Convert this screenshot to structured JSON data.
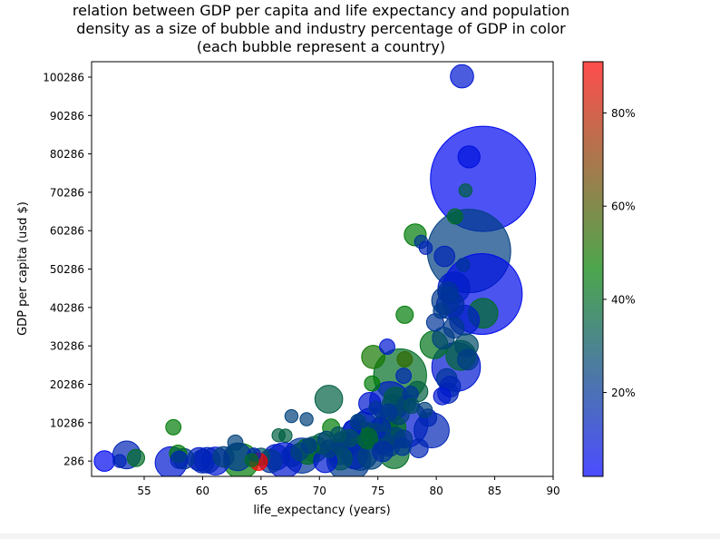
{
  "chart_data": {
    "type": "scatter",
    "title_lines": [
      "relation between GDP per capita and life expectancy and population",
      "density as a size of bubble and industry percentage of GDP in color",
      "(each bubble represent a country)"
    ],
    "xlabel": "life_expectancy (years)",
    "ylabel": "GDP per capita (usd $)",
    "xlim": [
      50.5,
      90
    ],
    "ylim": [
      -3700,
      104300
    ],
    "xticks": [
      55,
      60,
      65,
      70,
      75,
      80,
      85,
      90
    ],
    "yticks": [
      286,
      10286,
      20286,
      30286,
      40286,
      50286,
      60286,
      70286,
      80286,
      90286,
      100286
    ],
    "colorbar": {
      "range": [
        2,
        91
      ],
      "ticks": [
        20,
        40,
        60,
        80
      ],
      "tick_labels": [
        "20%",
        "40%",
        "60%",
        "80%"
      ],
      "colors": [
        "#0000ff",
        "#008000",
        "#ff0000"
      ]
    },
    "size_range": [
      0,
      1
    ],
    "points": [
      {
        "x": 82.2,
        "y": 100500,
        "s": 0.04,
        "c": 10
      },
      {
        "x": 82.8,
        "y": 79500,
        "s": 0.035,
        "c": 8
      },
      {
        "x": 84.0,
        "y": 73800,
        "s": 1.0,
        "c": 5
      },
      {
        "x": 82.5,
        "y": 70800,
        "s": 0.01,
        "c": 35
      },
      {
        "x": 81.6,
        "y": 64000,
        "s": 0.015,
        "c": 40
      },
      {
        "x": 82.8,
        "y": 55000,
        "s": 0.62,
        "c": 24
      },
      {
        "x": 83.9,
        "y": 43800,
        "s": 0.58,
        "c": 6
      },
      {
        "x": 78.2,
        "y": 59200,
        "s": 0.035,
        "c": 45
      },
      {
        "x": 78.7,
        "y": 57400,
        "s": 0.01,
        "c": 20
      },
      {
        "x": 79.1,
        "y": 55800,
        "s": 0.01,
        "c": 15
      },
      {
        "x": 80.7,
        "y": 53600,
        "s": 0.03,
        "c": 15
      },
      {
        "x": 82.3,
        "y": 51400,
        "s": 0.01,
        "c": 20
      },
      {
        "x": 81.5,
        "y": 45400,
        "s": 0.08,
        "c": 12
      },
      {
        "x": 81.0,
        "y": 44300,
        "s": 0.03,
        "c": 20
      },
      {
        "x": 80.8,
        "y": 42100,
        "s": 0.06,
        "c": 22
      },
      {
        "x": 81.2,
        "y": 40900,
        "s": 0.06,
        "c": 18
      },
      {
        "x": 80.4,
        "y": 39400,
        "s": 0.015,
        "c": 22
      },
      {
        "x": 84.0,
        "y": 38800,
        "s": 0.07,
        "c": 40
      },
      {
        "x": 82.4,
        "y": 37000,
        "s": 0.07,
        "c": 12
      },
      {
        "x": 79.9,
        "y": 36400,
        "s": 0.02,
        "c": 20
      },
      {
        "x": 77.3,
        "y": 38400,
        "s": 0.02,
        "c": 45
      },
      {
        "x": 81.5,
        "y": 35000,
        "s": 0.03,
        "c": 22
      },
      {
        "x": 80.6,
        "y": 32300,
        "s": 0.035,
        "c": 25
      },
      {
        "x": 79.8,
        "y": 30600,
        "s": 0.06,
        "c": 42
      },
      {
        "x": 82.6,
        "y": 30400,
        "s": 0.04,
        "c": 28
      },
      {
        "x": 75.8,
        "y": 30100,
        "s": 0.015,
        "c": 10
      },
      {
        "x": 82.1,
        "y": 27800,
        "s": 0.07,
        "c": 38
      },
      {
        "x": 82.7,
        "y": 26700,
        "s": 0.03,
        "c": 22
      },
      {
        "x": 74.6,
        "y": 27400,
        "s": 0.04,
        "c": 50
      },
      {
        "x": 77.3,
        "y": 26800,
        "s": 0.015,
        "c": 55
      },
      {
        "x": 81.7,
        "y": 24800,
        "s": 0.2,
        "c": 10
      },
      {
        "x": 76.9,
        "y": 22600,
        "s": 0.24,
        "c": 40
      },
      {
        "x": 80.9,
        "y": 21700,
        "s": 0.03,
        "c": 20
      },
      {
        "x": 77.2,
        "y": 22500,
        "s": 0.015,
        "c": 15
      },
      {
        "x": 74.5,
        "y": 20500,
        "s": 0.015,
        "c": 45
      },
      {
        "x": 81.2,
        "y": 19700,
        "s": 0.03,
        "c": 15
      },
      {
        "x": 78.4,
        "y": 18400,
        "s": 0.03,
        "c": 35
      },
      {
        "x": 81.0,
        "y": 18000,
        "s": 0.03,
        "c": 15
      },
      {
        "x": 77.8,
        "y": 17800,
        "s": 0.015,
        "c": 20
      },
      {
        "x": 80.5,
        "y": 17200,
        "s": 0.02,
        "c": 10
      },
      {
        "x": 76.5,
        "y": 16500,
        "s": 0.04,
        "c": 35
      },
      {
        "x": 76.0,
        "y": 15800,
        "s": 0.13,
        "c": 12
      },
      {
        "x": 74.3,
        "y": 15300,
        "s": 0.035,
        "c": 10
      },
      {
        "x": 77.5,
        "y": 15300,
        "s": 0.02,
        "c": 25
      },
      {
        "x": 76.3,
        "y": 14600,
        "s": 0.04,
        "c": 30
      },
      {
        "x": 74.8,
        "y": 14200,
        "s": 0.01,
        "c": 20
      },
      {
        "x": 70.8,
        "y": 16400,
        "s": 0.06,
        "c": 35
      },
      {
        "x": 77.9,
        "y": 14700,
        "s": 0.015,
        "c": 30
      },
      {
        "x": 79.0,
        "y": 13600,
        "s": 0.015,
        "c": 25
      },
      {
        "x": 75.9,
        "y": 12900,
        "s": 0.02,
        "c": 20
      },
      {
        "x": 76.8,
        "y": 12500,
        "s": 0.03,
        "c": 25
      },
      {
        "x": 67.6,
        "y": 12000,
        "s": 0.01,
        "c": 25
      },
      {
        "x": 68.9,
        "y": 11200,
        "s": 0.01,
        "c": 25
      },
      {
        "x": 79.3,
        "y": 11600,
        "s": 0.02,
        "c": 15
      },
      {
        "x": 77.2,
        "y": 10000,
        "s": 0.2,
        "c": 10
      },
      {
        "x": 79.6,
        "y": 8300,
        "s": 0.1,
        "c": 15
      },
      {
        "x": 73.3,
        "y": 10500,
        "s": 0.015,
        "c": 25
      },
      {
        "x": 74.4,
        "y": 9500,
        "s": 0.1,
        "c": 20
      },
      {
        "x": 73.8,
        "y": 9700,
        "s": 0.05,
        "c": 15
      },
      {
        "x": 75.6,
        "y": 9200,
        "s": 0.05,
        "c": 25
      },
      {
        "x": 76.4,
        "y": 9100,
        "s": 0.04,
        "c": 45
      },
      {
        "x": 75.2,
        "y": 8900,
        "s": 0.03,
        "c": 15
      },
      {
        "x": 72.8,
        "y": 8700,
        "s": 0.02,
        "c": 10
      },
      {
        "x": 71.0,
        "y": 9000,
        "s": 0.02,
        "c": 45
      },
      {
        "x": 74.0,
        "y": 7800,
        "s": 0.03,
        "c": 25
      },
      {
        "x": 73.2,
        "y": 7000,
        "s": 0.08,
        "c": 20
      },
      {
        "x": 75.8,
        "y": 7000,
        "s": 0.06,
        "c": 15
      },
      {
        "x": 74.8,
        "y": 6700,
        "s": 0.05,
        "c": 45
      },
      {
        "x": 74.1,
        "y": 6200,
        "s": 0.03,
        "c": 40
      },
      {
        "x": 76.5,
        "y": 6400,
        "s": 0.03,
        "c": 25
      },
      {
        "x": 77.2,
        "y": 6100,
        "s": 0.02,
        "c": 22
      },
      {
        "x": 71.6,
        "y": 7200,
        "s": 0.015,
        "c": 30
      },
      {
        "x": 72.6,
        "y": 6300,
        "s": 0.02,
        "c": 30
      },
      {
        "x": 70.6,
        "y": 5800,
        "s": 0.02,
        "c": 25
      },
      {
        "x": 71.9,
        "y": 5700,
        "s": 0.02,
        "c": 25
      },
      {
        "x": 70.2,
        "y": 4900,
        "s": 0.03,
        "c": 35
      },
      {
        "x": 72.2,
        "y": 4500,
        "s": 0.05,
        "c": 25
      },
      {
        "x": 75.5,
        "y": 5000,
        "s": 0.035,
        "c": 20
      },
      {
        "x": 76.0,
        "y": 4200,
        "s": 0.03,
        "c": 25
      },
      {
        "x": 77.1,
        "y": 4000,
        "s": 0.02,
        "c": 20
      },
      {
        "x": 78.5,
        "y": 3600,
        "s": 0.025,
        "c": 15
      },
      {
        "x": 66.5,
        "y": 7000,
        "s": 0.01,
        "c": 35
      },
      {
        "x": 67.1,
        "y": 6900,
        "s": 0.01,
        "c": 35
      },
      {
        "x": 69.1,
        "y": 4300,
        "s": 0.015,
        "c": 22
      },
      {
        "x": 70.8,
        "y": 3500,
        "s": 0.02,
        "c": 25
      },
      {
        "x": 69.6,
        "y": 3400,
        "s": 0.05,
        "c": 35
      },
      {
        "x": 68.3,
        "y": 2700,
        "s": 0.02,
        "c": 25
      },
      {
        "x": 69.0,
        "y": 2800,
        "s": 0.05,
        "c": 40
      },
      {
        "x": 71.8,
        "y": 2700,
        "s": 0.05,
        "c": 18
      },
      {
        "x": 73.5,
        "y": 2500,
        "s": 0.1,
        "c": 22
      },
      {
        "x": 73.0,
        "y": 1600,
        "s": 0.05,
        "c": 15
      },
      {
        "x": 71.8,
        "y": 1000,
        "s": 0.04,
        "c": 30
      },
      {
        "x": 72.5,
        "y": 700,
        "s": 0.16,
        "c": 22
      },
      {
        "x": 74.4,
        "y": 1500,
        "s": 0.05,
        "c": 25
      },
      {
        "x": 76.4,
        "y": 2200,
        "s": 0.07,
        "c": 40
      },
      {
        "x": 75.4,
        "y": 2800,
        "s": 0.03,
        "c": 18
      },
      {
        "x": 70.5,
        "y": 286,
        "s": 0.04,
        "c": 10
      },
      {
        "x": 68.5,
        "y": 1700,
        "s": 0.1,
        "c": 20
      },
      {
        "x": 67.6,
        "y": 1500,
        "s": 0.03,
        "c": 15
      },
      {
        "x": 66.3,
        "y": 1300,
        "s": 0.05,
        "c": 12
      },
      {
        "x": 67.0,
        "y": 500,
        "s": 0.1,
        "c": 10
      },
      {
        "x": 65.8,
        "y": 286,
        "s": 0.04,
        "c": 20
      },
      {
        "x": 65.0,
        "y": 1400,
        "s": 0.02,
        "c": 30
      },
      {
        "x": 64.8,
        "y": 100,
        "s": 0.02,
        "c": 91
      },
      {
        "x": 64.4,
        "y": 2000,
        "s": 0.01,
        "c": 15
      },
      {
        "x": 64.2,
        "y": 500,
        "s": 0.01,
        "c": 40
      },
      {
        "x": 63.3,
        "y": 286,
        "s": 0.1,
        "c": 45
      },
      {
        "x": 63.0,
        "y": 1400,
        "s": 0.06,
        "c": 20
      },
      {
        "x": 62.8,
        "y": 5100,
        "s": 0.015,
        "c": 25
      },
      {
        "x": 61.8,
        "y": 1400,
        "s": 0.03,
        "c": 25
      },
      {
        "x": 61.1,
        "y": 286,
        "s": 0.06,
        "c": 10
      },
      {
        "x": 60.4,
        "y": 500,
        "s": 0.05,
        "c": 15
      },
      {
        "x": 59.7,
        "y": 800,
        "s": 0.04,
        "c": 12
      },
      {
        "x": 60.0,
        "y": 200,
        "s": 0.04,
        "c": 15
      },
      {
        "x": 58.4,
        "y": 900,
        "s": 0.03,
        "c": 20
      },
      {
        "x": 57.9,
        "y": 2200,
        "s": 0.02,
        "c": 45
      },
      {
        "x": 57.5,
        "y": 9100,
        "s": 0.015,
        "c": 45
      },
      {
        "x": 57.3,
        "y": -100,
        "s": 0.08,
        "c": 10
      },
      {
        "x": 58.0,
        "y": 600,
        "s": 0.02,
        "c": 15
      },
      {
        "x": 53.5,
        "y": 1900,
        "s": 0.06,
        "c": 15
      },
      {
        "x": 54.3,
        "y": 1100,
        "s": 0.02,
        "c": 40
      },
      {
        "x": 52.9,
        "y": 286,
        "s": 0.01,
        "c": 15
      },
      {
        "x": 51.6,
        "y": 286,
        "s": 0.03,
        "c": 5
      }
    ]
  }
}
